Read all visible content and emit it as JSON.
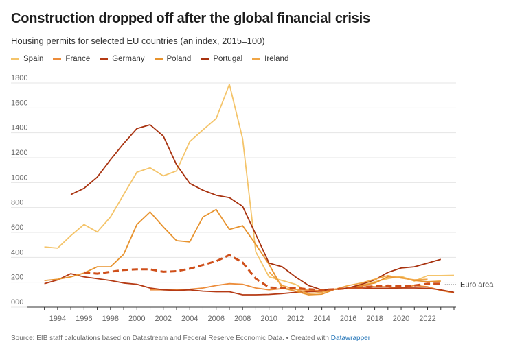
{
  "title": "Construction dropped off after the global financial crisis",
  "subtitle": "Housing permits for selected EU countries (an index, 2015=100)",
  "footer": {
    "source": "Source: EIB staff calculations based on Datastream and Federal Reserve Economic Data. • Created with ",
    "link": "Datawrapper"
  },
  "chart_data": {
    "type": "line",
    "title": "Construction dropped off after the global financial crisis",
    "ylabel": "",
    "xlabel": "",
    "ylim": [
      0,
      1800
    ],
    "xlim": [
      1992.5,
      2024
    ],
    "y_ticks": [
      {
        "label": "1800",
        "value": 1800
      },
      {
        "label": "1600",
        "value": 1600
      },
      {
        "label": "1400",
        "value": 1400
      },
      {
        "label": "1200",
        "value": 1200
      },
      {
        "label": "1000",
        "value": 1000
      },
      {
        "label": "800",
        "value": 800
      },
      {
        "label": "600",
        "value": 600
      },
      {
        "label": "400",
        "value": 400
      },
      {
        "label": "200",
        "value": 200
      },
      {
        "label": "000",
        "value": 0
      }
    ],
    "x_ticks": [
      {
        "label": "1994",
        "value": 1994
      },
      {
        "label": "1996",
        "value": 1996
      },
      {
        "label": "1998",
        "value": 1998
      },
      {
        "label": "2000",
        "value": 2000
      },
      {
        "label": "2002",
        "value": 2002
      },
      {
        "label": "2004",
        "value": 2004
      },
      {
        "label": "2006",
        "value": 2006
      },
      {
        "label": "2008",
        "value": 2008
      },
      {
        "label": "2010",
        "value": 2010
      },
      {
        "label": "2012",
        "value": 2012
      },
      {
        "label": "2014",
        "value": 2014
      },
      {
        "label": "2016",
        "value": 2016
      },
      {
        "label": "2018",
        "value": 2018
      },
      {
        "label": "2020",
        "value": 2020
      },
      {
        "label": "2022",
        "value": 2022
      }
    ],
    "series": [
      {
        "name": "Spain",
        "color": "#f4c46a",
        "dashed": false,
        "in_legend": true,
        "points": [
          [
            1993,
            440
          ],
          [
            1994,
            430
          ],
          [
            1995,
            530
          ],
          [
            1996,
            620
          ],
          [
            1997,
            560
          ],
          [
            1998,
            680
          ],
          [
            1999,
            860
          ],
          [
            2000,
            1040
          ],
          [
            2001,
            1075
          ],
          [
            2002,
            1010
          ],
          [
            2003,
            1050
          ],
          [
            2004,
            1285
          ],
          [
            2005,
            1380
          ],
          [
            2006,
            1470
          ],
          [
            2007,
            1745
          ],
          [
            2008,
            1310
          ],
          [
            2009,
            400
          ],
          [
            2010,
            200
          ],
          [
            2011,
            170
          ],
          [
            2012,
            140
          ],
          [
            2013,
            80
          ],
          [
            2014,
            85
          ],
          [
            2015,
            100
          ],
          [
            2016,
            105
          ],
          [
            2017,
            130
          ],
          [
            2018,
            160
          ],
          [
            2019,
            185
          ],
          [
            2020,
            205
          ],
          [
            2021,
            165
          ],
          [
            2022,
            210
          ],
          [
            2023,
            210
          ],
          [
            2024,
            212
          ]
        ]
      },
      {
        "name": "France",
        "color": "#ec8c3a",
        "dashed": false,
        "in_legend": true,
        "points": [
          [
            2001,
            95
          ],
          [
            2002,
            95
          ],
          [
            2003,
            95
          ],
          [
            2004,
            100
          ],
          [
            2005,
            110
          ],
          [
            2006,
            130
          ],
          [
            2007,
            145
          ],
          [
            2008,
            140
          ],
          [
            2009,
            110
          ],
          [
            2010,
            95
          ],
          [
            2011,
            105
          ],
          [
            2012,
            100
          ],
          [
            2013,
            92
          ],
          [
            2014,
            88
          ],
          [
            2015,
            100
          ],
          [
            2016,
            110
          ],
          [
            2017,
            130
          ],
          [
            2018,
            120
          ],
          [
            2019,
            120
          ],
          [
            2020,
            110
          ],
          [
            2021,
            130
          ],
          [
            2022,
            120
          ],
          [
            2023,
            90
          ],
          [
            2024,
            70
          ]
        ]
      },
      {
        "name": "Germany",
        "color": "#b53a14",
        "dashed": false,
        "in_legend": true,
        "points": [
          [
            1993,
            145
          ],
          [
            1994,
            175
          ],
          [
            1995,
            225
          ],
          [
            1996,
            200
          ],
          [
            1997,
            185
          ],
          [
            1998,
            170
          ],
          [
            1999,
            150
          ],
          [
            2000,
            140
          ],
          [
            2001,
            110
          ],
          [
            2002,
            95
          ],
          [
            2003,
            90
          ],
          [
            2004,
            95
          ],
          [
            2005,
            85
          ],
          [
            2006,
            80
          ],
          [
            2007,
            80
          ],
          [
            2008,
            55
          ],
          [
            2009,
            55
          ],
          [
            2010,
            58
          ],
          [
            2011,
            65
          ],
          [
            2012,
            75
          ],
          [
            2013,
            80
          ],
          [
            2014,
            85
          ],
          [
            2015,
            100
          ],
          [
            2016,
            110
          ],
          [
            2017,
            110
          ],
          [
            2018,
            108
          ],
          [
            2019,
            108
          ],
          [
            2020,
            110
          ],
          [
            2021,
            110
          ],
          [
            2022,
            108
          ],
          [
            2023,
            95
          ],
          [
            2024,
            75
          ]
        ]
      },
      {
        "name": "Poland",
        "color": "#e7922d",
        "dashed": false,
        "in_legend": true,
        "points": [
          [
            1993,
            170
          ],
          [
            1994,
            180
          ],
          [
            1995,
            200
          ],
          [
            1996,
            230
          ],
          [
            1997,
            280
          ],
          [
            1998,
            280
          ],
          [
            1999,
            380
          ],
          [
            2000,
            620
          ],
          [
            2001,
            720
          ],
          [
            2002,
            600
          ],
          [
            2003,
            490
          ],
          [
            2004,
            480
          ],
          [
            2005,
            680
          ],
          [
            2006,
            740
          ],
          [
            2007,
            580
          ],
          [
            2008,
            610
          ],
          [
            2009,
            460
          ],
          [
            2010,
            300
          ],
          [
            2011,
            110
          ],
          [
            2012,
            85
          ],
          [
            2013,
            55
          ],
          [
            2014,
            60
          ],
          [
            2015,
            100
          ],
          [
            2016,
            110
          ],
          [
            2017,
            130
          ],
          [
            2018,
            150
          ],
          [
            2019,
            200
          ],
          [
            2020,
            195
          ],
          [
            2021,
            170
          ],
          [
            2022,
            160
          ],
          [
            2023,
            165
          ]
        ]
      },
      {
        "name": "Portugal",
        "color": "#a8320f",
        "dashed": false,
        "in_legend": true,
        "points": [
          [
            1995,
            860
          ],
          [
            1996,
            910
          ],
          [
            1997,
            1000
          ],
          [
            1998,
            1140
          ],
          [
            1999,
            1270
          ],
          [
            2000,
            1390
          ],
          [
            2001,
            1420
          ],
          [
            2002,
            1330
          ],
          [
            2003,
            1100
          ],
          [
            2004,
            950
          ],
          [
            2005,
            895
          ],
          [
            2006,
            855
          ],
          [
            2007,
            835
          ],
          [
            2008,
            765
          ],
          [
            2009,
            540
          ],
          [
            2010,
            310
          ],
          [
            2011,
            280
          ],
          [
            2012,
            200
          ],
          [
            2013,
            130
          ],
          [
            2014,
            95
          ],
          [
            2015,
            100
          ],
          [
            2016,
            110
          ],
          [
            2017,
            140
          ],
          [
            2018,
            175
          ],
          [
            2019,
            235
          ],
          [
            2020,
            270
          ],
          [
            2021,
            280
          ],
          [
            2022,
            310
          ],
          [
            2023,
            340
          ]
        ]
      },
      {
        "name": "Ireland",
        "color": "#f0a646",
        "dashed": false,
        "in_legend": true,
        "points": [
          [
            2010,
            240
          ],
          [
            2011,
            130
          ],
          [
            2012,
            100
          ],
          [
            2013,
            65
          ],
          [
            2014,
            75
          ],
          [
            2015,
            100
          ],
          [
            2016,
            130
          ],
          [
            2017,
            150
          ],
          [
            2018,
            180
          ],
          [
            2019,
            210
          ],
          [
            2020,
            190
          ],
          [
            2021,
            175
          ],
          [
            2022,
            180
          ]
        ]
      },
      {
        "name": "Euro area",
        "color": "#cf4f1a",
        "dashed": true,
        "in_legend": false,
        "end_label": "Euro area",
        "points": [
          [
            1996,
            235
          ],
          [
            1997,
            225
          ],
          [
            1998,
            240
          ],
          [
            1999,
            255
          ],
          [
            2000,
            260
          ],
          [
            2001,
            260
          ],
          [
            2002,
            240
          ],
          [
            2003,
            245
          ],
          [
            2004,
            265
          ],
          [
            2005,
            295
          ],
          [
            2006,
            325
          ],
          [
            2007,
            375
          ],
          [
            2008,
            315
          ],
          [
            2009,
            185
          ],
          [
            2010,
            115
          ],
          [
            2011,
            110
          ],
          [
            2012,
            110
          ],
          [
            2013,
            100
          ],
          [
            2014,
            95
          ],
          [
            2015,
            100
          ],
          [
            2016,
            108
          ],
          [
            2017,
            115
          ],
          [
            2018,
            125
          ],
          [
            2019,
            130
          ],
          [
            2020,
            125
          ],
          [
            2021,
            130
          ],
          [
            2022,
            145
          ],
          [
            2023,
            145
          ]
        ]
      }
    ]
  }
}
